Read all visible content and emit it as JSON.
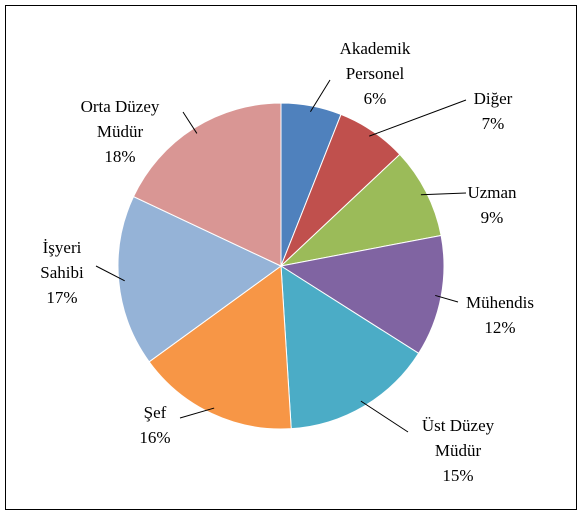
{
  "chart_data": {
    "type": "pie",
    "categories": [
      "Akademik Personel",
      "Diğer",
      "Uzman",
      "Mühendis",
      "Üst Düzey Müdür",
      "Şef",
      "İşyeri Sahibi",
      "Orta Düzey Müdür"
    ],
    "values": [
      6,
      7,
      9,
      12,
      15,
      16,
      17,
      18
    ],
    "value_labels": [
      "6%",
      "7%",
      "9%",
      "12%",
      "15%",
      "16%",
      "17%",
      "18%"
    ],
    "colors": [
      "#4f81bd",
      "#c0504d",
      "#9bbb59",
      "#8064a2",
      "#4bacc6",
      "#f79646",
      "#95b3d7",
      "#d99694"
    ]
  }
}
